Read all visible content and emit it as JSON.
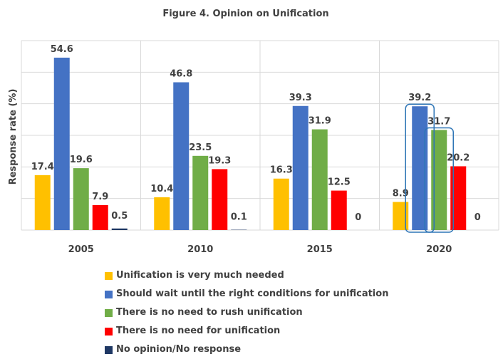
{
  "chart_data": {
    "type": "bar",
    "title": "Figure 4. Opinion on Unification",
    "ylabel": "Response rate (%)",
    "xlabel": "",
    "categories": [
      "2005",
      "2010",
      "2015",
      "2020"
    ],
    "ylim": [
      0,
      60
    ],
    "grid": true,
    "legend_position": "bottom",
    "series": [
      {
        "name": "Unification is very much needed",
        "color": "#FFC000",
        "values": [
          17.4,
          10.4,
          16.3,
          8.9
        ]
      },
      {
        "name": "Should wait until the right conditions for unification",
        "color": "#4472C4",
        "values": [
          54.6,
          46.8,
          39.3,
          39.2
        ]
      },
      {
        "name": "There is no need to rush unification",
        "color": "#70AD47",
        "values": [
          19.6,
          23.5,
          31.9,
          31.7
        ]
      },
      {
        "name": "There is no need for unification",
        "color": "#FF0000",
        "values": [
          7.9,
          19.3,
          12.5,
          20.2
        ]
      },
      {
        "name": "No opinion/No response",
        "color": "#1F3864",
        "values": [
          0.5,
          0.1,
          0,
          0
        ]
      }
    ],
    "highlights": [
      {
        "category": "2020",
        "series": "Should wait until the right conditions for unification",
        "color": "#2E75B6"
      },
      {
        "category": "2020",
        "series": "There is no need to rush unification",
        "color": "#2E75B6"
      }
    ]
  }
}
